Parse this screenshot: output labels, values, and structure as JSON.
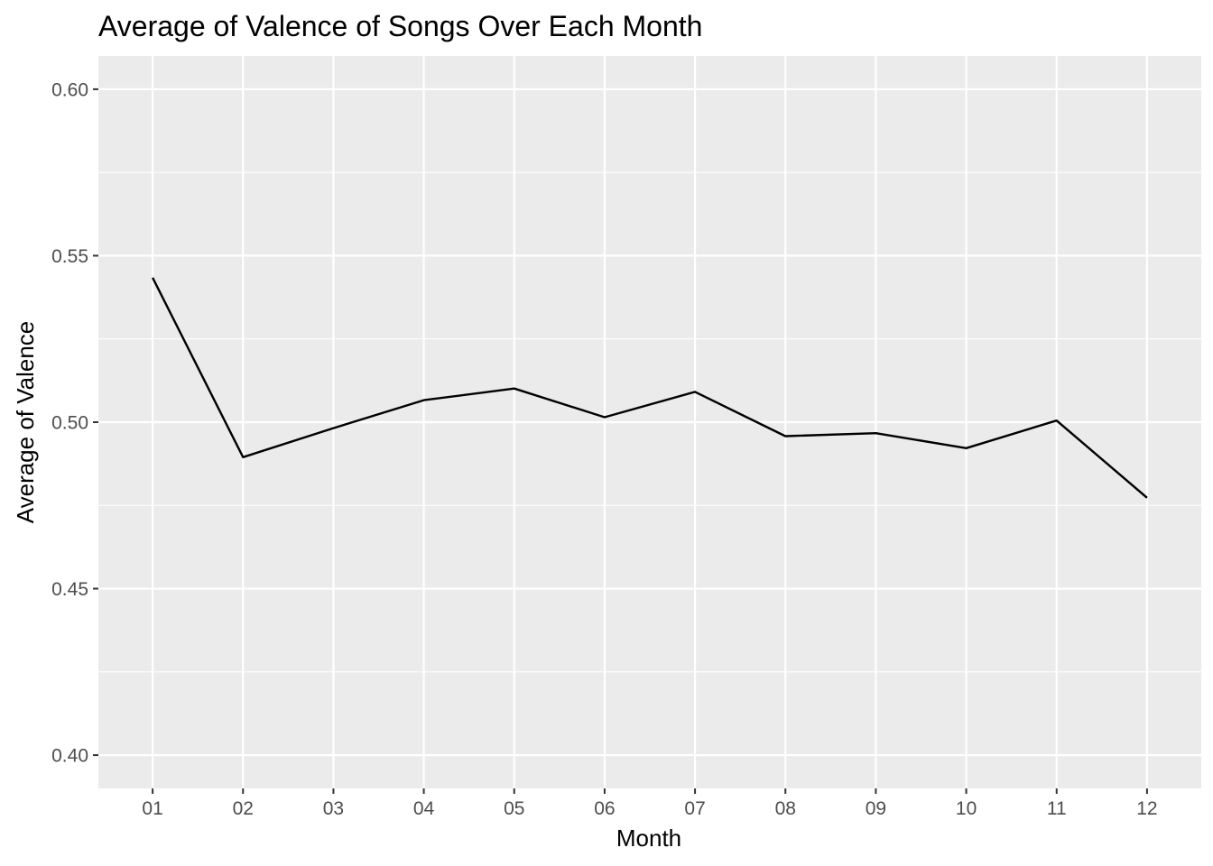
{
  "chart_data": {
    "type": "line",
    "title": "Average of Valence of Songs Over Each Month",
    "xlabel": "Month",
    "ylabel": "Average of Valence",
    "categories": [
      "01",
      "02",
      "03",
      "04",
      "05",
      "06",
      "07",
      "08",
      "09",
      "10",
      "11",
      "12"
    ],
    "series": [
      {
        "values": [
          0.5434,
          0.4895,
          0.4982,
          0.5066,
          0.5101,
          0.5015,
          0.5091,
          0.4958,
          0.4967,
          0.4922,
          0.5005,
          0.4773
        ]
      }
    ],
    "ylim": [
      0.39,
      0.61
    ],
    "yticks": [
      0.4,
      0.45,
      0.5,
      0.55,
      0.6
    ],
    "ytick_labels": [
      "0.40",
      "0.45",
      "0.50",
      "0.55",
      "0.60"
    ],
    "grid": true,
    "legend": "none",
    "colors": {
      "panel_background": "#ebebeb",
      "grid_line": "#ffffff",
      "series_line": "#000000",
      "tick_label": "#4d4d4d",
      "tick_mark": "#333333"
    }
  }
}
